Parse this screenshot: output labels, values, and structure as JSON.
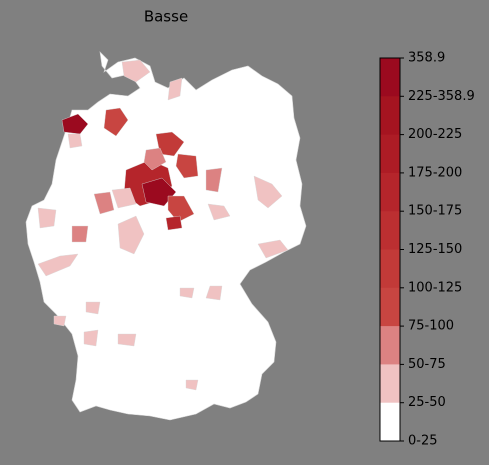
{
  "title": "Basse",
  "legend": {
    "labels": [
      "358.9",
      "225-358.9",
      "200-225",
      "175-200",
      "150-175",
      "125-150",
      "100-125",
      "75-100",
      "50-75",
      "25-50",
      "0-25"
    ],
    "colors": [
      "#9b0a1f",
      "#a51420",
      "#ad1c25",
      "#b5252b",
      "#bc2f31",
      "#c23a38",
      "#c84541",
      "#dc8282",
      "#f0c2c2",
      "#ffffff"
    ]
  }
}
